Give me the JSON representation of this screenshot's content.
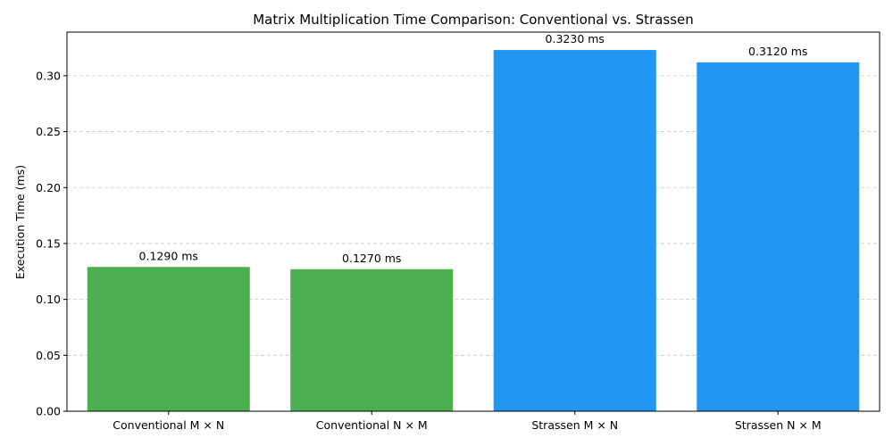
{
  "chart_data": {
    "type": "bar",
    "title": "Matrix Multiplication Time Comparison: Conventional vs. Strassen",
    "xlabel": "",
    "ylabel": "Execution Time (ms)",
    "categories": [
      "Conventional M × N",
      "Conventional N × M",
      "Strassen M × N",
      "Strassen N × M"
    ],
    "values": [
      0.129,
      0.127,
      0.323,
      0.312
    ],
    "data_labels": [
      "0.1290 ms",
      "0.1270 ms",
      "0.3230 ms",
      "0.3120 ms"
    ],
    "bar_colors": [
      "#4caf50",
      "#4caf50",
      "#2196f3",
      "#2196f3"
    ],
    "ylim": [
      0,
      0.339
    ],
    "yticks": [
      0.0,
      0.05,
      0.1,
      0.15,
      0.2,
      0.25,
      0.3
    ],
    "ytick_labels": [
      "0.00",
      "0.05",
      "0.10",
      "0.15",
      "0.20",
      "0.25",
      "0.30"
    ],
    "grid": "y-dashed",
    "legend": "none"
  }
}
